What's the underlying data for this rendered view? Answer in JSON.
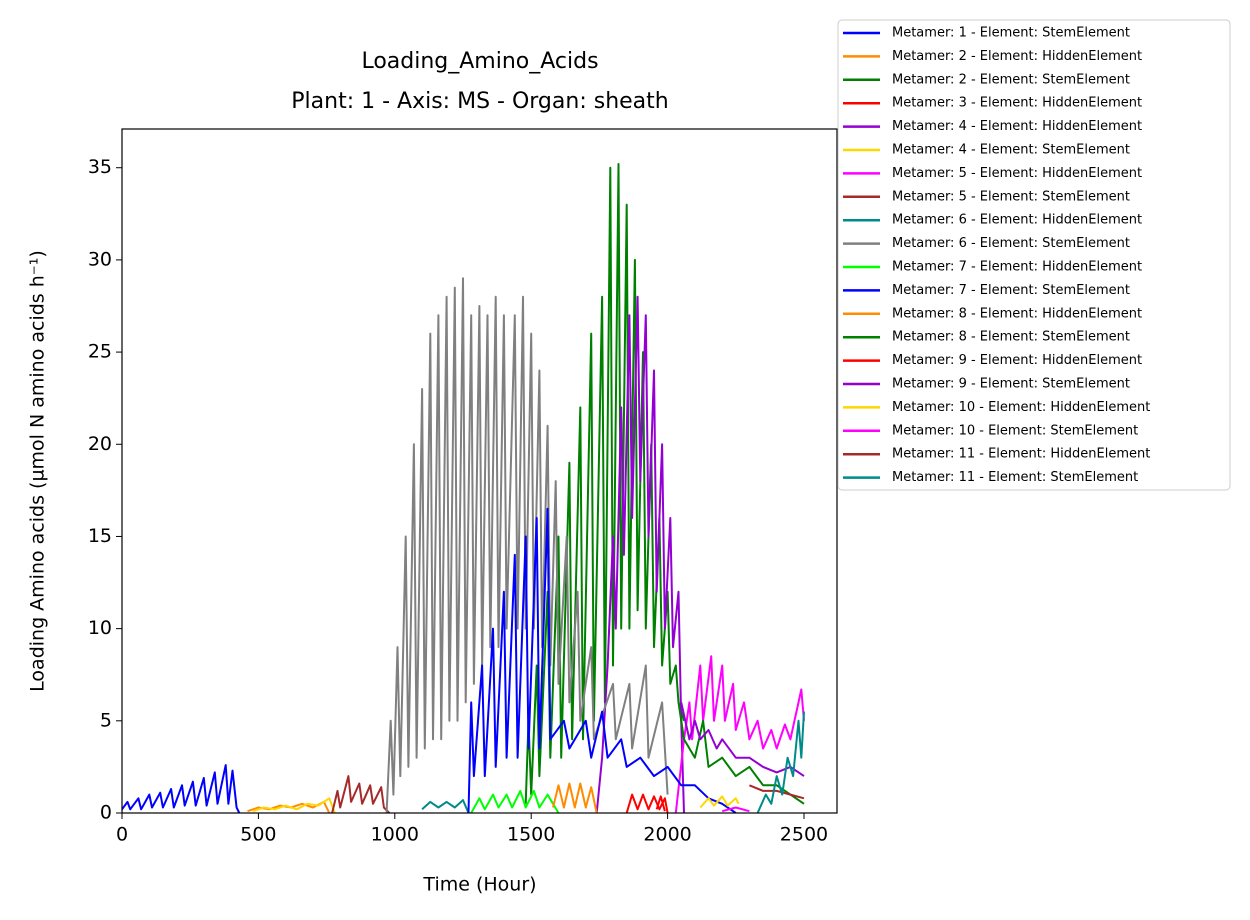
{
  "chart_data": {
    "type": "line",
    "title": "Loading_Amino_Acids",
    "subtitle": "Plant: 1 - Axis: MS - Organ: sheath",
    "x_label": "Time (Hour)",
    "y_label": "Loading Amino acids (µmol N amino acids h⁻¹)",
    "xlim": [
      0,
      2621
    ],
    "ylim": [
      0,
      37.1
    ],
    "xticks": [
      0,
      500,
      1000,
      1500,
      2000,
      2500
    ],
    "yticks": [
      0,
      5,
      10,
      15,
      20,
      25,
      30,
      35
    ],
    "legend": "outside-upper-right",
    "series": [
      {
        "name": "Metamer: 1 - Element: StemElement",
        "color": "#0000ff",
        "x": [
          0,
          20,
          30,
          60,
          70,
          100,
          110,
          140,
          150,
          180,
          190,
          220,
          230,
          260,
          270,
          300,
          310,
          340,
          350,
          380,
          390,
          405,
          420,
          430
        ],
        "values": [
          0.2,
          0.6,
          0.2,
          0.8,
          0.2,
          1.0,
          0.3,
          1.1,
          0.3,
          1.3,
          0.3,
          1.5,
          0.4,
          1.7,
          0.4,
          1.9,
          0.4,
          2.2,
          0.5,
          2.6,
          0.5,
          2.3,
          0.3,
          0
        ]
      },
      {
        "name": "Metamer: 2 - Element: HiddenElement",
        "color": "#ff8c00",
        "x": [
          460,
          500,
          540,
          580,
          620,
          660,
          700,
          740,
          760
        ],
        "values": [
          0.1,
          0.3,
          0.2,
          0.4,
          0.3,
          0.5,
          0.3,
          0.6,
          0
        ]
      },
      {
        "name": "Metamer: 2 - Element: StemElement",
        "color": "#008000",
        "x": [
          1480,
          1490,
          1500,
          1520,
          1530,
          1560,
          1570,
          1600,
          1610,
          1640,
          1650,
          1680,
          1690,
          1720,
          1730,
          1760,
          1770,
          1790,
          1800,
          1820,
          1830,
          1850,
          1860,
          1880,
          1890,
          1910,
          1920,
          1940,
          1950,
          1970,
          1980,
          2000,
          2010,
          2030,
          2040,
          2060
        ],
        "values": [
          0.5,
          5,
          1,
          8,
          2,
          12,
          3,
          15,
          3,
          19,
          4,
          22,
          4,
          26,
          5,
          28,
          6,
          35,
          8,
          35.2,
          10,
          33,
          10,
          30,
          11,
          25,
          10,
          20,
          9,
          16,
          8,
          12,
          7,
          8,
          6,
          5
        ]
      },
      {
        "name": "Metamer: 3 - Element: HiddenElement",
        "color": "#ff0000",
        "x": [
          1850,
          1870,
          1890,
          1910,
          1930,
          1950,
          1970,
          1990,
          2000
        ],
        "values": [
          0,
          1,
          0.2,
          1,
          0.2,
          0.9,
          0.2,
          0.8,
          0
        ]
      },
      {
        "name": "Metamer: 4 - Element: HiddenElement",
        "color": "#9400d3",
        "x": [
          1740,
          1760,
          1780,
          1800,
          1810,
          1830,
          1840,
          1860,
          1870,
          1890,
          1900,
          1920,
          1930,
          1950,
          1960,
          1980,
          1990,
          2010,
          2020,
          2040,
          2050,
          2060
        ],
        "values": [
          0,
          3,
          8,
          15,
          10,
          22,
          14,
          27,
          16,
          28,
          18,
          27,
          15,
          24,
          12,
          20,
          10,
          16,
          9,
          12,
          5,
          0
        ]
      },
      {
        "name": "Metamer: 4 - Element: StemElement",
        "color": "#ffd700",
        "x": [
          480,
          520,
          560,
          600,
          640,
          680,
          720,
          760,
          780
        ],
        "values": [
          0.1,
          0.3,
          0.2,
          0.4,
          0.2,
          0.5,
          0.4,
          0.8,
          0
        ]
      },
      {
        "name": "Metamer: 5 - Element: HiddenElement",
        "color": "#ff00ff",
        "x": [
          2030,
          2060,
          2080,
          2090,
          2120,
          2130,
          2160,
          2170,
          2200,
          2210,
          2240,
          2250,
          2280,
          2300,
          2330,
          2350,
          2380,
          2400,
          2430,
          2450,
          2480,
          2490,
          2500
        ],
        "values": [
          0,
          4,
          6,
          4,
          8,
          5,
          8.5,
          5,
          8,
          5,
          7,
          4.5,
          6,
          4,
          5,
          3.5,
          4.5,
          3.5,
          4.8,
          4,
          6,
          6.7,
          5
        ]
      },
      {
        "name": "Metamer: 5 - Element: StemElement",
        "color": "#a52a2a",
        "x": [
          770,
          790,
          800,
          830,
          840,
          870,
          880,
          910,
          920,
          950,
          960,
          980
        ],
        "values": [
          0,
          1.2,
          0.3,
          2,
          0.6,
          1.6,
          0.5,
          1.5,
          0.5,
          1.4,
          0.3,
          0
        ]
      },
      {
        "name": "Metamer: 6 - Element: HiddenElement",
        "color": "#008b8b",
        "x": [
          1100,
          1130,
          1160,
          1190,
          1220,
          1250,
          1270
        ],
        "values": [
          0.2,
          0.6,
          0.3,
          0.6,
          0.3,
          0.7,
          0
        ]
      },
      {
        "name": "Metamer: 6 - Element: StemElement",
        "color": "#808080",
        "x": [
          970,
          985,
          995,
          1010,
          1020,
          1040,
          1050,
          1070,
          1080,
          1100,
          1110,
          1130,
          1140,
          1160,
          1170,
          1190,
          1200,
          1220,
          1230,
          1250,
          1260,
          1280,
          1290,
          1310,
          1320,
          1340,
          1350,
          1370,
          1380,
          1400,
          1410,
          1440,
          1450,
          1470,
          1480,
          1500,
          1510,
          1530,
          1540,
          1560,
          1570,
          1590,
          1600,
          1630,
          1640,
          1670,
          1680,
          1720,
          1730,
          1800,
          1810,
          1860,
          1870,
          1920,
          1930,
          1980,
          2000
        ],
        "values": [
          0,
          5,
          1,
          9,
          2,
          15,
          2.5,
          20,
          3,
          23,
          3.5,
          26,
          4,
          27,
          4,
          28,
          5,
          28.5,
          5,
          29,
          6,
          27,
          7,
          27.5,
          8,
          27,
          9,
          28,
          9,
          27,
          10,
          27,
          10,
          28,
          10,
          26,
          10,
          24,
          9,
          21,
          8,
          18,
          7,
          15,
          6,
          12,
          5,
          9,
          4,
          7,
          4,
          7,
          3.5,
          8,
          3,
          6,
          1
        ]
      },
      {
        "name": "Metamer: 7 - Element: HiddenElement",
        "color": "#00ff00",
        "x": [
          1280,
          1310,
          1330,
          1360,
          1380,
          1410,
          1430,
          1460,
          1480,
          1510,
          1530,
          1560,
          1600
        ],
        "values": [
          0,
          0.8,
          0.2,
          1,
          0.3,
          1,
          0.3,
          1.2,
          0.3,
          1.2,
          0.3,
          1,
          0
        ]
      },
      {
        "name": "Metamer: 7 - Element: StemElement",
        "color": "#0000ff",
        "x": [
          1270,
          1280,
          1290,
          1320,
          1330,
          1360,
          1370,
          1400,
          1410,
          1440,
          1450,
          1480,
          1490,
          1520,
          1530,
          1560,
          1570,
          1620,
          1640,
          1700,
          1720,
          1760,
          1780,
          1830,
          1850,
          1900,
          1950,
          2000,
          2050,
          2100,
          2150,
          2200,
          2250
        ],
        "values": [
          0,
          6,
          2,
          8,
          2,
          10,
          2.5,
          12,
          3,
          14,
          3,
          15,
          3.5,
          16,
          3.5,
          16.5,
          4,
          5,
          3.5,
          5,
          3,
          5.5,
          3,
          4,
          2.5,
          3,
          2,
          2.5,
          1.5,
          1.5,
          0.8,
          0.5,
          0
        ]
      },
      {
        "name": "Metamer: 8 - Element: HiddenElement",
        "color": "#ff8c00",
        "x": [
          1580,
          1600,
          1620,
          1640,
          1660,
          1680,
          1700,
          1720,
          1740
        ],
        "values": [
          0.3,
          1.5,
          0.3,
          1.6,
          0.3,
          1.6,
          0.3,
          1.4,
          0
        ]
      },
      {
        "name": "Metamer: 8 - Element: StemElement",
        "color": "#008000",
        "x": [
          2040,
          2060,
          2100,
          2130,
          2150,
          2200,
          2250,
          2300,
          2350,
          2400,
          2450,
          2500
        ],
        "values": [
          6,
          4,
          3,
          5,
          2.5,
          3,
          2,
          2.5,
          1.5,
          1.5,
          1,
          0.5
        ]
      },
      {
        "name": "Metamer: 9 - Element: HiddenElement",
        "color": "#ff0000",
        "x": [
          1960,
          1975,
          1990
        ],
        "values": [
          0.2,
          0.9,
          0.1
        ]
      },
      {
        "name": "Metamer: 9 - Element: StemElement",
        "color": "#9400d3",
        "x": [
          2050,
          2080,
          2100,
          2120,
          2150,
          2180,
          2200,
          2250,
          2300,
          2350,
          2400,
          2450,
          2500
        ],
        "values": [
          6,
          4,
          5,
          4,
          4.5,
          3.5,
          4,
          3,
          3,
          2.5,
          2.2,
          2.5,
          2
        ]
      },
      {
        "name": "Metamer: 10 - Element: HiddenElement",
        "color": "#ffd700",
        "x": [
          2120,
          2150,
          2170,
          2200,
          2220,
          2250,
          2260
        ],
        "values": [
          0.3,
          0.8,
          0.4,
          0.9,
          0.4,
          0.8,
          0.5
        ]
      },
      {
        "name": "Metamer: 10 - Element: StemElement",
        "color": "#ff00ff",
        "x": [
          2200,
          2250,
          2300
        ],
        "values": [
          0.1,
          0.3,
          0.1
        ]
      },
      {
        "name": "Metamer: 11 - Element: HiddenElement",
        "color": "#a52a2a",
        "x": [
          2300,
          2350,
          2400,
          2450,
          2500
        ],
        "values": [
          1.5,
          1.2,
          1.2,
          1,
          0.8
        ]
      },
      {
        "name": "Metamer: 11 - Element: StemElement",
        "color": "#008b8b",
        "x": [
          2330,
          2360,
          2380,
          2400,
          2420,
          2440,
          2460,
          2480,
          2490,
          2500
        ],
        "values": [
          0,
          1,
          0.5,
          2,
          1,
          3,
          2,
          5,
          3,
          5.5
        ]
      }
    ]
  }
}
